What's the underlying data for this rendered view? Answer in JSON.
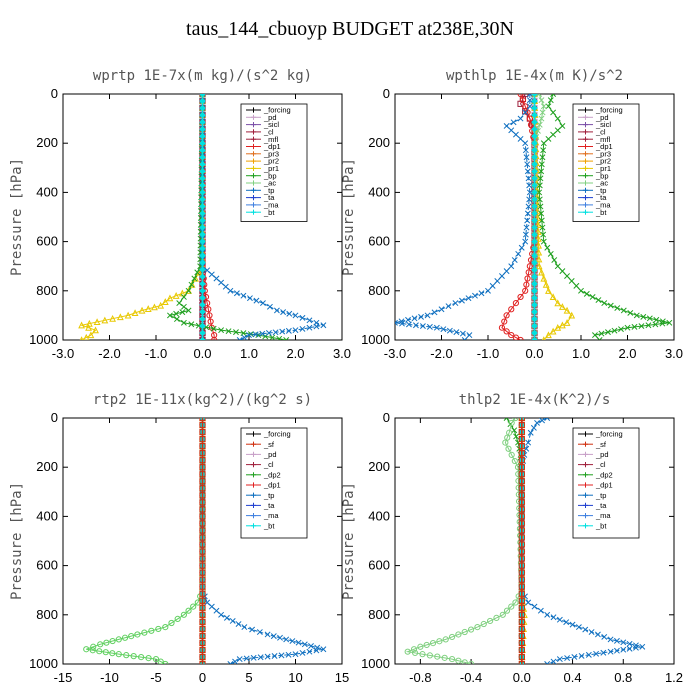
{
  "title": "taus_144_cbuoyp  BUDGET at238E,30N",
  "chart_data": [
    {
      "type": "line",
      "title": "wprtp  1E-7x(m kg)/(s^2 kg)",
      "ylabel": "Pressure [hPa]",
      "xlim": [
        -3,
        3
      ],
      "ylim": [
        1000,
        0
      ],
      "xticks": [
        -3,
        -2,
        -1,
        0,
        1,
        2,
        3
      ],
      "xtick_labels": [
        "-3.0",
        "-2.0",
        "-1.0",
        "0.0",
        "1.0",
        "2.0",
        "3.0"
      ],
      "yticks": [
        0,
        200,
        400,
        600,
        800,
        1000
      ],
      "legend": [
        "_forcing",
        "_pd",
        "_sicl",
        "_cl",
        "_mfl",
        "_dp1",
        "_pr3",
        "_pr2",
        "_pr1",
        "_bp",
        "_ac",
        "_tp",
        "_ta",
        "_ma",
        "_bt"
      ],
      "series": [
        {
          "name": "_forcing",
          "color": "#000000",
          "marker": "o",
          "p": [
            0,
            200,
            400,
            600,
            800,
            900,
            950,
            1000
          ],
          "x": [
            0,
            0,
            0,
            0,
            0,
            0,
            0,
            0
          ]
        },
        {
          "name": "_pd",
          "color": "#c8a0c8",
          "marker": "s",
          "p": [
            0,
            200,
            400,
            600,
            800,
            1000
          ],
          "x": [
            0,
            0,
            0,
            0,
            0,
            0
          ]
        },
        {
          "name": "_sicl",
          "color": "#7b4fa8",
          "marker": "s",
          "p": [
            0,
            200,
            400,
            600,
            800,
            1000
          ],
          "x": [
            0,
            0,
            0,
            0,
            0,
            0
          ]
        },
        {
          "name": "_mfl",
          "color": "#a0203c",
          "marker": "s",
          "p": [
            0,
            200,
            400,
            600,
            800,
            1000
          ],
          "x": [
            0,
            0,
            0,
            0,
            0,
            0
          ]
        },
        {
          "name": "_dp1",
          "color": "#e02020",
          "marker": "o",
          "p": [
            0,
            600,
            700,
            800,
            850,
            900,
            950,
            980,
            1000
          ],
          "x": [
            0,
            0,
            0,
            0.05,
            0.1,
            0.15,
            0.2,
            0.25,
            0.25
          ]
        },
        {
          "name": "_pr1",
          "color": "#e8c800",
          "marker": "^",
          "p": [
            0,
            700,
            800,
            830,
            860,
            880,
            900,
            920,
            940,
            960,
            980,
            1000
          ],
          "x": [
            0,
            0,
            -0.3,
            -0.7,
            -0.9,
            -1.3,
            -1.6,
            -2.1,
            -2.6,
            -2.3,
            -2.4,
            -2.6
          ]
        },
        {
          "name": "_bp",
          "color": "#20a020",
          "marker": "x",
          "p": [
            0,
            700,
            800,
            850,
            880,
            900,
            930,
            960,
            980,
            1000
          ],
          "x": [
            0,
            -0.05,
            -0.3,
            -0.5,
            -0.3,
            -0.7,
            -0.4,
            0.4,
            1.2,
            1.8
          ]
        },
        {
          "name": "_tp",
          "color": "#1070c0",
          "marker": "x",
          "p": [
            0,
            700,
            750,
            800,
            850,
            880,
            900,
            920,
            940,
            960,
            980,
            1000
          ],
          "x": [
            0,
            0,
            0.3,
            0.6,
            1.3,
            1.6,
            2.0,
            2.3,
            2.6,
            2.0,
            1.0,
            0.8
          ]
        },
        {
          "name": "_ta",
          "color": "#2040d0",
          "marker": "+",
          "p": [
            0,
            1000
          ],
          "x": [
            0,
            0
          ]
        },
        {
          "name": "_bt",
          "color": "#00e0e0",
          "marker": "d",
          "p": [
            0,
            1000
          ],
          "x": [
            0,
            0
          ]
        }
      ]
    },
    {
      "type": "line",
      "title": "wpthlp  1E-4x(m K)/s^2",
      "ylabel": "Pressure [hPa]",
      "xlim": [
        -3,
        3
      ],
      "ylim": [
        1000,
        0
      ],
      "xticks": [
        -3,
        -2,
        -1,
        0,
        1,
        2,
        3
      ],
      "xtick_labels": [
        "-3.0",
        "-2.0",
        "-1.0",
        "0.0",
        "1.0",
        "2.0",
        "3.0"
      ],
      "yticks": [
        0,
        200,
        400,
        600,
        800,
        1000
      ],
      "legend": [
        "_forcing",
        "_pd",
        "_sicl",
        "_cl",
        "_mfl",
        "_dp1",
        "_pr3",
        "_pr2",
        "_pr1",
        "_bp",
        "_ac",
        "_tp",
        "_ta",
        "_ma",
        "_bt"
      ],
      "series": [
        {
          "name": "_forcing",
          "color": "#000000",
          "marker": "o",
          "p": [
            0,
            1000
          ],
          "x": [
            0,
            0
          ]
        },
        {
          "name": "_pd",
          "color": "#c8a0c8",
          "marker": "s",
          "p": [
            0,
            1000
          ],
          "x": [
            0,
            0
          ]
        },
        {
          "name": "_mfl",
          "color": "#a0203c",
          "marker": "s",
          "p": [
            0,
            40,
            100,
            150,
            1000
          ],
          "x": [
            -0.2,
            -0.3,
            -0.1,
            0,
            0
          ]
        },
        {
          "name": "_dp1",
          "color": "#e02020",
          "marker": "o",
          "p": [
            0,
            50,
            100,
            200,
            600,
            700,
            800,
            850,
            900,
            950,
            980,
            1000
          ],
          "x": [
            -0.3,
            -0.2,
            -0.1,
            0,
            0,
            -0.1,
            -0.2,
            -0.4,
            -0.6,
            -0.7,
            -0.5,
            -0.3
          ]
        },
        {
          "name": "_pr1",
          "color": "#e8c800",
          "marker": "^",
          "p": [
            0,
            700,
            800,
            850,
            880,
            900,
            930,
            950,
            980,
            1000
          ],
          "x": [
            0,
            0.1,
            0.3,
            0.5,
            0.7,
            0.8,
            0.7,
            0.5,
            0.3,
            0.2
          ]
        },
        {
          "name": "_bp",
          "color": "#20a020",
          "marker": "x",
          "p": [
            0,
            50,
            100,
            130,
            200,
            400,
            600,
            700,
            800,
            850,
            900,
            930,
            950,
            980,
            1000
          ],
          "x": [
            0.4,
            0.3,
            0.5,
            0.6,
            0.2,
            0.1,
            0.2,
            0.5,
            1.0,
            1.5,
            2.2,
            2.9,
            2.0,
            1.3,
            1.4
          ]
        },
        {
          "name": "_ac",
          "color": "#80d080",
          "marker": "x",
          "p": [
            0,
            50,
            100,
            200,
            1000
          ],
          "x": [
            0.1,
            0.2,
            0.15,
            0,
            0
          ]
        },
        {
          "name": "_tp",
          "color": "#1070c0",
          "marker": "x",
          "p": [
            0,
            50,
            100,
            130,
            200,
            400,
            600,
            700,
            800,
            850,
            900,
            930,
            950,
            980,
            1000
          ],
          "x": [
            -0.1,
            -0.1,
            -0.3,
            -0.6,
            -0.2,
            -0.1,
            -0.2,
            -0.5,
            -1.0,
            -1.7,
            -2.3,
            -3.0,
            -2.1,
            -1.4,
            -1.5
          ]
        },
        {
          "name": "_ta",
          "color": "#2040d0",
          "marker": "+",
          "p": [
            0,
            1000
          ],
          "x": [
            0,
            0
          ]
        },
        {
          "name": "_bt",
          "color": "#00e0e0",
          "marker": "d",
          "p": [
            0,
            1000
          ],
          "x": [
            0,
            0
          ]
        }
      ]
    },
    {
      "type": "line",
      "title": "rtp2  1E-11x(kg^2)/(kg^2 s)",
      "ylabel": "Pressure [hPa]",
      "xlim": [
        -15,
        15
      ],
      "ylim": [
        1000,
        0
      ],
      "xticks": [
        -15,
        -10,
        -5,
        0,
        5,
        10,
        15
      ],
      "xtick_labels": [
        "-15",
        "-10",
        "-5",
        "0",
        "5",
        "10",
        "15"
      ],
      "yticks": [
        0,
        200,
        400,
        600,
        800,
        1000
      ],
      "legend": [
        "_forcing",
        "_sf",
        "_pd",
        "_cl",
        "_dp2",
        "_dp1",
        "_tp",
        "_ta",
        "_ma",
        "_bt"
      ],
      "series": [
        {
          "name": "_forcing",
          "color": "#e02020",
          "marker": "o",
          "p": [
            0,
            200,
            400,
            600,
            800,
            1000
          ],
          "x": [
            0,
            0,
            0,
            0,
            0,
            0
          ]
        },
        {
          "name": "_pd",
          "color": "#e8c800",
          "marker": "^",
          "p": [
            0,
            1000
          ],
          "x": [
            0,
            0
          ]
        },
        {
          "name": "_dp2",
          "color": "#20a020",
          "marker": "x",
          "p": [
            0,
            1000
          ],
          "x": [
            0,
            0
          ]
        },
        {
          "name": "_dp1",
          "color": "#60d060",
          "marker": "o",
          "p": [
            0,
            700,
            750,
            800,
            850,
            880,
            900,
            920,
            940,
            960,
            980,
            1000
          ],
          "x": [
            0,
            0,
            -0.5,
            -2,
            -4,
            -7,
            -9,
            -11,
            -12.5,
            -9,
            -5,
            -4
          ]
        },
        {
          "name": "_tp",
          "color": "#1070c0",
          "marker": "x",
          "p": [
            0,
            700,
            750,
            800,
            850,
            880,
            900,
            920,
            940,
            960,
            980,
            1000
          ],
          "x": [
            0,
            0,
            0.5,
            2,
            4.5,
            7,
            9,
            11,
            13,
            10,
            4,
            3
          ]
        },
        {
          "name": "_ta",
          "color": "#2040d0",
          "marker": "+",
          "p": [
            0,
            1000
          ],
          "x": [
            0,
            0
          ]
        },
        {
          "name": "_bt",
          "color": "#00e0e0",
          "marker": "d",
          "p": [
            0,
            1000
          ],
          "x": [
            0,
            0
          ]
        },
        {
          "name": "_sf",
          "color": "#d03010",
          "marker": "s",
          "p": [
            0,
            200,
            400,
            600,
            800,
            1000
          ],
          "x": [
            0,
            0,
            0,
            0,
            0,
            0
          ]
        }
      ]
    },
    {
      "type": "line",
      "title": "thlp2  1E-4x(K^2)/s",
      "ylabel": "Pressure [hPa]",
      "xlim": [
        -1,
        1.2
      ],
      "ylim": [
        1000,
        0
      ],
      "xticks": [
        -0.8,
        -0.4,
        0.0,
        0.4,
        0.8,
        1.2
      ],
      "xtick_labels": [
        "-0.8",
        "-0.4",
        "0.0",
        "0.4",
        "0.8",
        "1.2"
      ],
      "yticks": [
        0,
        200,
        400,
        600,
        800,
        1000
      ],
      "legend": [
        "_forcing",
        "_sf",
        "_pd",
        "_cl",
        "_dp2",
        "_dp1",
        "_tp",
        "_ta",
        "_ma",
        "_bt"
      ],
      "series": [
        {
          "name": "_forcing",
          "color": "#e02020",
          "marker": "o",
          "p": [
            0,
            200,
            400,
            600,
            800,
            1000
          ],
          "x": [
            0,
            0,
            0,
            0,
            0,
            0
          ]
        },
        {
          "name": "_pd",
          "color": "#e8c800",
          "marker": "^",
          "p": [
            0,
            700,
            800,
            1000
          ],
          "x": [
            0,
            0,
            0.02,
            0
          ]
        },
        {
          "name": "_dp2",
          "color": "#20a020",
          "marker": "x",
          "p": [
            0,
            50,
            100,
            150,
            1000
          ],
          "x": [
            -0.12,
            -0.06,
            -0.03,
            -0.01,
            0
          ]
        },
        {
          "name": "_dp1",
          "color": "#80d080",
          "marker": "o",
          "p": [
            0,
            20,
            60,
            100,
            150,
            200,
            700,
            750,
            800,
            850,
            900,
            930,
            950,
            980,
            1000
          ],
          "x": [
            -0.05,
            -0.08,
            -0.1,
            -0.13,
            -0.08,
            -0.03,
            0,
            -0.05,
            -0.15,
            -0.35,
            -0.6,
            -0.8,
            -0.9,
            -0.55,
            -0.4
          ]
        },
        {
          "name": "_tp",
          "color": "#1070c0",
          "marker": "x",
          "p": [
            0,
            20,
            60,
            100,
            150,
            200,
            700,
            750,
            800,
            850,
            900,
            930,
            950,
            980,
            1000
          ],
          "x": [
            0.2,
            0.12,
            0.07,
            0.05,
            0.02,
            0,
            0,
            0.05,
            0.2,
            0.45,
            0.7,
            0.95,
            0.7,
            0.3,
            0.2
          ]
        },
        {
          "name": "_ta",
          "color": "#2040d0",
          "marker": "+",
          "p": [
            0,
            1000
          ],
          "x": [
            0,
            0
          ]
        },
        {
          "name": "_bt",
          "color": "#00e0e0",
          "marker": "d",
          "p": [
            0,
            1000
          ],
          "x": [
            0,
            0
          ]
        },
        {
          "name": "_sf",
          "color": "#d03010",
          "marker": "s",
          "p": [
            0,
            200,
            400,
            600,
            800,
            1000
          ],
          "x": [
            0,
            0,
            0,
            0,
            0,
            0
          ]
        }
      ]
    }
  ]
}
